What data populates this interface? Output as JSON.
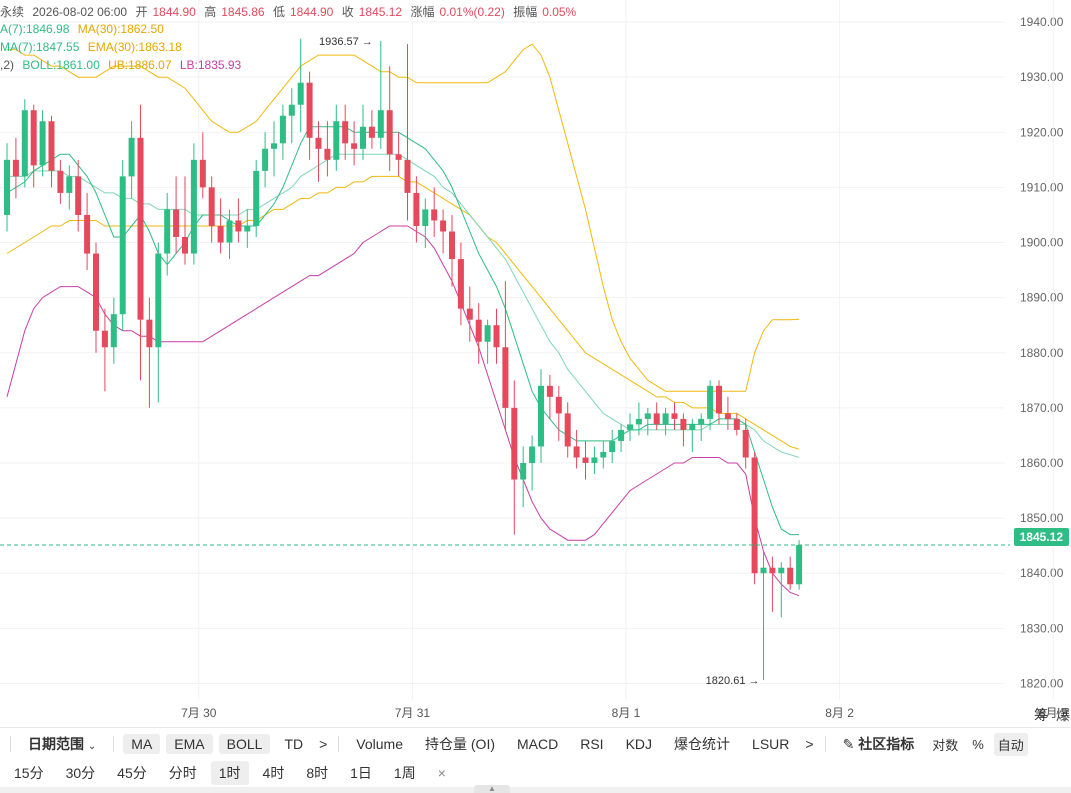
{
  "header": {
    "symbol_partial": "永续",
    "datetime": "2026-08-02 06:00",
    "open_label": "开",
    "open": "1844.90",
    "high_label": "高",
    "high": "1845.86",
    "low_label": "低",
    "low": "1844.90",
    "close_label": "收",
    "close": "1845.12",
    "change_label": "涨幅",
    "change": "0.01%(0.22)",
    "amplitude_label": "振幅",
    "amplitude": "0.05%"
  },
  "indicators": {
    "ma7": "A(7):1846.98",
    "ma30": "MA(30):1862.50",
    "ema7": "MA(7):1847.55",
    "ema30": "EMA(30):1863.18",
    "boll_params": ",2)",
    "boll": "BOLL:1861.00",
    "ub": "UB:1886.07",
    "lb": "LB:1835.93"
  },
  "colors": {
    "up": "#2ebd85",
    "down": "#e5495c",
    "ma7": "#2ebd85",
    "ma30": "#f0b90b",
    "boll_mid": "#2ebd85",
    "boll_ub": "#f0b90b",
    "boll_lb": "#c83ea6",
    "grid": "#f2f2f2",
    "current_line": "#2ebd85"
  },
  "price_tag": "1845.12",
  "chart_data": {
    "type": "candlestick",
    "interval": "1h",
    "y_axis_labels": [
      "1940.00",
      "1930.00",
      "1920.00",
      "1910.00",
      "1900.00",
      "1890.00",
      "1880.00",
      "1870.00",
      "1860.00",
      "1850.00",
      "1840.00",
      "1830.00",
      "1820.00"
    ],
    "ylim": [
      1817,
      1944
    ],
    "x_axis_labels": [
      {
        "label": "7月 30",
        "index": 12
      },
      {
        "label": "7月 31",
        "index": 36
      },
      {
        "label": "8月 1",
        "index": 60
      },
      {
        "label": "8月 2",
        "index": 84
      },
      {
        "label": "8月 3",
        "index": 108
      }
    ],
    "high_annotation": {
      "label": "1936.57",
      "index": 42,
      "value": 1936.57
    },
    "low_annotation": {
      "label": "1820.61",
      "index": 85,
      "value": 1820.61
    },
    "candles": [
      [
        1905,
        1918,
        1902,
        1915
      ],
      [
        1915,
        1919,
        1908,
        1912
      ],
      [
        1912,
        1926,
        1910,
        1924
      ],
      [
        1924,
        1925,
        1910,
        1914
      ],
      [
        1914,
        1924,
        1912,
        1922
      ],
      [
        1922,
        1923,
        1910,
        1913
      ],
      [
        1913,
        1915,
        1907,
        1909
      ],
      [
        1909,
        1914,
        1906,
        1912
      ],
      [
        1912,
        1915,
        1902,
        1905
      ],
      [
        1905,
        1909,
        1895,
        1898
      ],
      [
        1898,
        1900,
        1880,
        1884
      ],
      [
        1884,
        1888,
        1873,
        1881
      ],
      [
        1881,
        1890,
        1878,
        1887
      ],
      [
        1887,
        1915,
        1884,
        1912
      ],
      [
        1912,
        1922,
        1908,
        1919
      ],
      [
        1919,
        1925,
        1875,
        1886
      ],
      [
        1886,
        1890,
        1870,
        1881
      ],
      [
        1881,
        1900,
        1871,
        1898
      ],
      [
        1898,
        1909,
        1894,
        1906
      ],
      [
        1906,
        1912,
        1898,
        1901
      ],
      [
        1901,
        1912,
        1896,
        1898
      ],
      [
        1898,
        1918,
        1896,
        1915
      ],
      [
        1915,
        1920,
        1908,
        1910
      ],
      [
        1910,
        1912,
        1900,
        1903
      ],
      [
        1903,
        1908,
        1898,
        1900
      ],
      [
        1900,
        1906,
        1897,
        1904
      ],
      [
        1904,
        1908,
        1900,
        1902
      ],
      [
        1902,
        1906,
        1899,
        1903
      ],
      [
        1903,
        1915,
        1901,
        1913
      ],
      [
        1913,
        1920,
        1910,
        1917
      ],
      [
        1917,
        1922,
        1912,
        1918
      ],
      [
        1918,
        1925,
        1915,
        1923
      ],
      [
        1923,
        1928,
        1918,
        1925
      ],
      [
        1925,
        1937,
        1920,
        1929
      ],
      [
        1929,
        1931,
        1915,
        1919
      ],
      [
        1919,
        1922,
        1911,
        1917
      ],
      [
        1917,
        1922,
        1912,
        1915
      ],
      [
        1915,
        1925,
        1913,
        1922
      ],
      [
        1922,
        1925,
        1915,
        1918
      ],
      [
        1918,
        1922,
        1914,
        1917
      ],
      [
        1917,
        1925,
        1915,
        1921
      ],
      [
        1921,
        1924,
        1917,
        1919
      ],
      [
        1919,
        1936.57,
        1917,
        1924
      ],
      [
        1924,
        1932,
        1913,
        1916
      ],
      [
        1916,
        1920,
        1912,
        1915
      ],
      [
        1915,
        1936,
        1904,
        1909
      ],
      [
        1909,
        1912,
        1900,
        1903
      ],
      [
        1903,
        1908,
        1899,
        1906
      ],
      [
        1906,
        1910,
        1901,
        1904
      ],
      [
        1904,
        1906,
        1898,
        1902
      ],
      [
        1902,
        1905,
        1892,
        1897
      ],
      [
        1897,
        1900,
        1885,
        1888
      ],
      [
        1888,
        1892,
        1882,
        1886
      ],
      [
        1886,
        1889,
        1878,
        1882
      ],
      [
        1882,
        1886,
        1878,
        1885
      ],
      [
        1885,
        1888,
        1878,
        1881
      ],
      [
        1881,
        1893,
        1866,
        1870
      ],
      [
        1870,
        1875,
        1847,
        1857
      ],
      [
        1857,
        1863,
        1852,
        1860
      ],
      [
        1860,
        1865,
        1855,
        1863
      ],
      [
        1863,
        1877,
        1860,
        1874
      ],
      [
        1874,
        1876,
        1868,
        1872
      ],
      [
        1872,
        1874,
        1864,
        1869
      ],
      [
        1869,
        1871,
        1861,
        1863
      ],
      [
        1863,
        1866,
        1859,
        1861
      ],
      [
        1861,
        1864,
        1857,
        1860
      ],
      [
        1860,
        1863,
        1858,
        1861
      ],
      [
        1861,
        1864,
        1859,
        1862
      ],
      [
        1862,
        1866,
        1860,
        1864
      ],
      [
        1864,
        1867,
        1862,
        1866
      ],
      [
        1866,
        1869,
        1864,
        1867
      ],
      [
        1867,
        1871,
        1865,
        1868
      ],
      [
        1868,
        1870,
        1865,
        1869
      ],
      [
        1869,
        1871,
        1866,
        1867
      ],
      [
        1867,
        1870,
        1865,
        1869
      ],
      [
        1869,
        1871,
        1866,
        1868
      ],
      [
        1868,
        1869,
        1863,
        1866
      ],
      [
        1866,
        1868,
        1862,
        1867
      ],
      [
        1867,
        1869,
        1864,
        1868
      ],
      [
        1868,
        1875,
        1866,
        1874
      ],
      [
        1874,
        1875,
        1867,
        1869
      ],
      [
        1869,
        1872,
        1866,
        1868
      ],
      [
        1868,
        1869,
        1865,
        1866
      ],
      [
        1866,
        1868,
        1859,
        1861
      ],
      [
        1861,
        1862,
        1838,
        1840
      ],
      [
        1840,
        1844,
        1820.61,
        1841
      ],
      [
        1841,
        1843,
        1833,
        1840
      ],
      [
        1840,
        1842,
        1832,
        1841
      ],
      [
        1841,
        1843,
        1837,
        1838
      ],
      [
        1838,
        1846,
        1837,
        1845.12
      ]
    ],
    "ma7": [
      1909,
      1910,
      1911,
      1913,
      1914,
      1915,
      1916,
      1916,
      1914,
      1912,
      1909,
      1905,
      1901,
      1901,
      1903,
      1905,
      1902,
      1898,
      1896,
      1898,
      1900,
      1903,
      1905,
      1905,
      1905,
      1904,
      1903,
      1903,
      1903,
      1905,
      1907,
      1910,
      1914,
      1918,
      1921,
      1921,
      1921,
      1921,
      1921,
      1920,
      1920,
      1920,
      1920,
      1920,
      1920,
      1919,
      1918,
      1917,
      1915,
      1913,
      1910,
      1906,
      1902,
      1898,
      1895,
      1892,
      1888,
      1883,
      1878,
      1873,
      1870,
      1868,
      1866,
      1865,
      1864,
      1864,
      1864,
      1864,
      1864,
      1865,
      1866,
      1866,
      1867,
      1867,
      1867,
      1867,
      1867,
      1867,
      1867,
      1867,
      1868,
      1868,
      1868,
      1867,
      1862,
      1857,
      1852,
      1848,
      1847,
      1847
    ],
    "ma30": [
      1898,
      1899,
      1900,
      1901,
      1902,
      1903,
      1903,
      1904,
      1904,
      1904,
      1904,
      1903,
      1903,
      1903,
      1903,
      1903,
      1903,
      1903,
      1903,
      1903,
      1903,
      1903,
      1903,
      1903,
      1903,
      1903,
      1903,
      1904,
      1904,
      1905,
      1906,
      1906,
      1907,
      1908,
      1908,
      1909,
      1909,
      1910,
      1910,
      1911,
      1911,
      1912,
      1912,
      1912,
      1912,
      1911,
      1911,
      1910,
      1909,
      1908,
      1907,
      1906,
      1905,
      1903,
      1901,
      1900,
      1898,
      1896,
      1894,
      1892,
      1890,
      1888,
      1886,
      1884,
      1882,
      1880,
      1879,
      1878,
      1877,
      1876,
      1875,
      1874,
      1873,
      1872,
      1872,
      1871,
      1871,
      1870,
      1870,
      1870,
      1869,
      1869,
      1869,
      1868,
      1867,
      1866,
      1865,
      1864,
      1863,
      1862.5
    ],
    "boll_ub": [
      1935,
      1935,
      1934,
      1934,
      1933,
      1932,
      1932,
      1931,
      1930,
      1930,
      1930,
      1931,
      1932,
      1932,
      1932,
      1932,
      1931,
      1930,
      1930,
      1929,
      1928,
      1926,
      1924,
      1922,
      1921,
      1920,
      1920,
      1921,
      1922,
      1924,
      1926,
      1928,
      1930,
      1932,
      1933,
      1934,
      1934,
      1934,
      1934,
      1934,
      1933,
      1932,
      1931,
      1931,
      1930,
      1930,
      1929,
      1929,
      1929,
      1929,
      1929,
      1929,
      1929,
      1929,
      1929,
      1930,
      1931,
      1933,
      1935,
      1936,
      1934,
      1930,
      1924,
      1918,
      1912,
      1906,
      1899,
      1892,
      1886,
      1882,
      1879,
      1877,
      1875,
      1874,
      1873,
      1873,
      1873,
      1873,
      1873,
      1873,
      1873,
      1873,
      1873,
      1873,
      1880,
      1884,
      1886,
      1886,
      1886,
      1886.07
    ],
    "boll_mid": [
      1912,
      1912,
      1912,
      1913,
      1913,
      1913,
      1913,
      1912,
      1912,
      1911,
      1910,
      1909,
      1909,
      1908,
      1908,
      1907,
      1907,
      1906,
      1906,
      1906,
      1906,
      1905,
      1905,
      1905,
      1905,
      1905,
      1905,
      1906,
      1906,
      1907,
      1908,
      1909,
      1910,
      1912,
      1913,
      1914,
      1915,
      1916,
      1916,
      1916,
      1916,
      1916,
      1916,
      1916,
      1916,
      1915,
      1914,
      1913,
      1912,
      1910,
      1909,
      1907,
      1905,
      1903,
      1901,
      1899,
      1897,
      1894,
      1891,
      1888,
      1885,
      1882,
      1880,
      1877,
      1875,
      1873,
      1871,
      1869,
      1868,
      1867,
      1866,
      1866,
      1866,
      1866,
      1866,
      1866,
      1866,
      1866,
      1866,
      1867,
      1867,
      1867,
      1867,
      1867,
      1866,
      1864,
      1863,
      1862,
      1861.5,
      1861
    ],
    "boll_lb": [
      1872,
      1878,
      1884,
      1888,
      1890,
      1891,
      1892,
      1892,
      1892,
      1891,
      1890,
      1887,
      1885,
      1884,
      1884,
      1883,
      1883,
      1882,
      1882,
      1882,
      1882,
      1882,
      1882,
      1883,
      1884,
      1885,
      1886,
      1887,
      1888,
      1889,
      1890,
      1891,
      1892,
      1893,
      1894,
      1894,
      1895,
      1896,
      1897,
      1898,
      1900,
      1901,
      1902,
      1903,
      1903,
      1903,
      1902,
      1901,
      1899,
      1896,
      1893,
      1889,
      1885,
      1881,
      1876,
      1871,
      1866,
      1861,
      1857,
      1853,
      1850,
      1848,
      1847,
      1846,
      1846,
      1846,
      1847,
      1849,
      1851,
      1853,
      1855,
      1856,
      1857,
      1858,
      1859,
      1860,
      1860,
      1861,
      1861,
      1861,
      1861,
      1860,
      1860,
      1858,
      1850,
      1844,
      1840,
      1838,
      1836.5,
      1835.93
    ]
  },
  "toolbar1": {
    "date_range": "日期范围",
    "ma": "MA",
    "ema": "EMA",
    "boll": "BOLL",
    "td": "TD",
    "more": ">",
    "volume": "Volume",
    "oi": "持仓量 (OI)",
    "macd": "MACD",
    "rsi": "RSI",
    "kdj": "KDJ",
    "liq": "爆仓统计",
    "lsur": "LSUR",
    "more2": ">",
    "community": "社区指标",
    "log": "对数",
    "pct": "%",
    "auto": "自动"
  },
  "right_tabs": {
    "chips": "筹",
    "liq": "爆"
  },
  "toolbar2": {
    "intervals": [
      "15分",
      "30分",
      "45分",
      "分时",
      "1时",
      "4时",
      "8时",
      "1日",
      "1周"
    ],
    "active": "1时",
    "close": "×"
  }
}
